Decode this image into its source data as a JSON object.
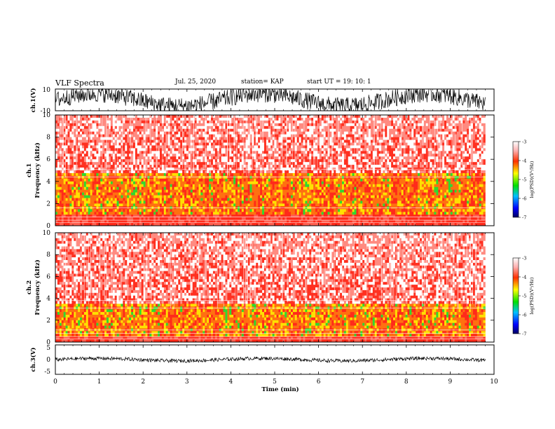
{
  "header": {
    "title": "VLF Spectra",
    "date": "Jul. 25, 2020",
    "station": "station= KAP",
    "start_ut": "start UT =  19: 10: 1"
  },
  "chart_data": [
    {
      "type": "line",
      "panel": "ch1-waveform",
      "ylabel": "ch.1(V)",
      "ylim": [
        -10,
        10
      ],
      "y_ticks": [
        "10",
        "-10"
      ],
      "x_range_min": [
        0,
        9.8
      ],
      "description_color": "#000000"
    },
    {
      "type": "heatmap",
      "panel": "ch1-spectrogram",
      "ylabel_line1": "ch.1",
      "ylabel_line2": "Frequency (kHz)",
      "ylim": [
        0,
        10
      ],
      "y_ticks": [
        "0",
        "2",
        "4",
        "6",
        "8",
        "10"
      ],
      "x_range_min": [
        0,
        9.8
      ],
      "intensity_band_khz": [
        1,
        4.8
      ],
      "colorbar": {
        "label": "log(PSD)(V²/Hz)",
        "ticks": [
          "-3",
          "-4",
          "-5",
          "-6",
          "-7"
        ],
        "range": [
          -7,
          -3
        ]
      }
    },
    {
      "type": "heatmap",
      "panel": "ch2-spectrogram",
      "ylabel_line1": "ch.2",
      "ylabel_line2": "Frequency (kHz)",
      "ylim": [
        0,
        10
      ],
      "y_ticks": [
        "0",
        "2",
        "4",
        "6",
        "8",
        "10"
      ],
      "x_range_min": [
        0,
        9.8
      ],
      "intensity_band_khz": [
        0.5,
        3.5
      ],
      "colorbar": {
        "label": "log(PSD)(V²/Hz)",
        "ticks": [
          "-3",
          "-4",
          "-5",
          "-6",
          "-7"
        ],
        "range": [
          -7,
          -3
        ]
      }
    },
    {
      "type": "line",
      "panel": "ch3-waveform",
      "ylabel": "ch.3(V)",
      "ylim": [
        -5,
        5
      ],
      "y_ticks": [
        "5",
        "0",
        "-5"
      ],
      "x_range_min": [
        0,
        9.8
      ]
    }
  ],
  "time_axis": {
    "label": "Time (min)",
    "range": [
      0,
      10
    ],
    "ticks": [
      "0",
      "1",
      "2",
      "3",
      "4",
      "5",
      "6",
      "7",
      "8",
      "9",
      "10"
    ]
  },
  "colors": {
    "spectro_low": "#ffffff",
    "spectro_mid": "#ff2a1a",
    "spectro_high": "#ffe000",
    "spectro_peak": "#30e030"
  }
}
